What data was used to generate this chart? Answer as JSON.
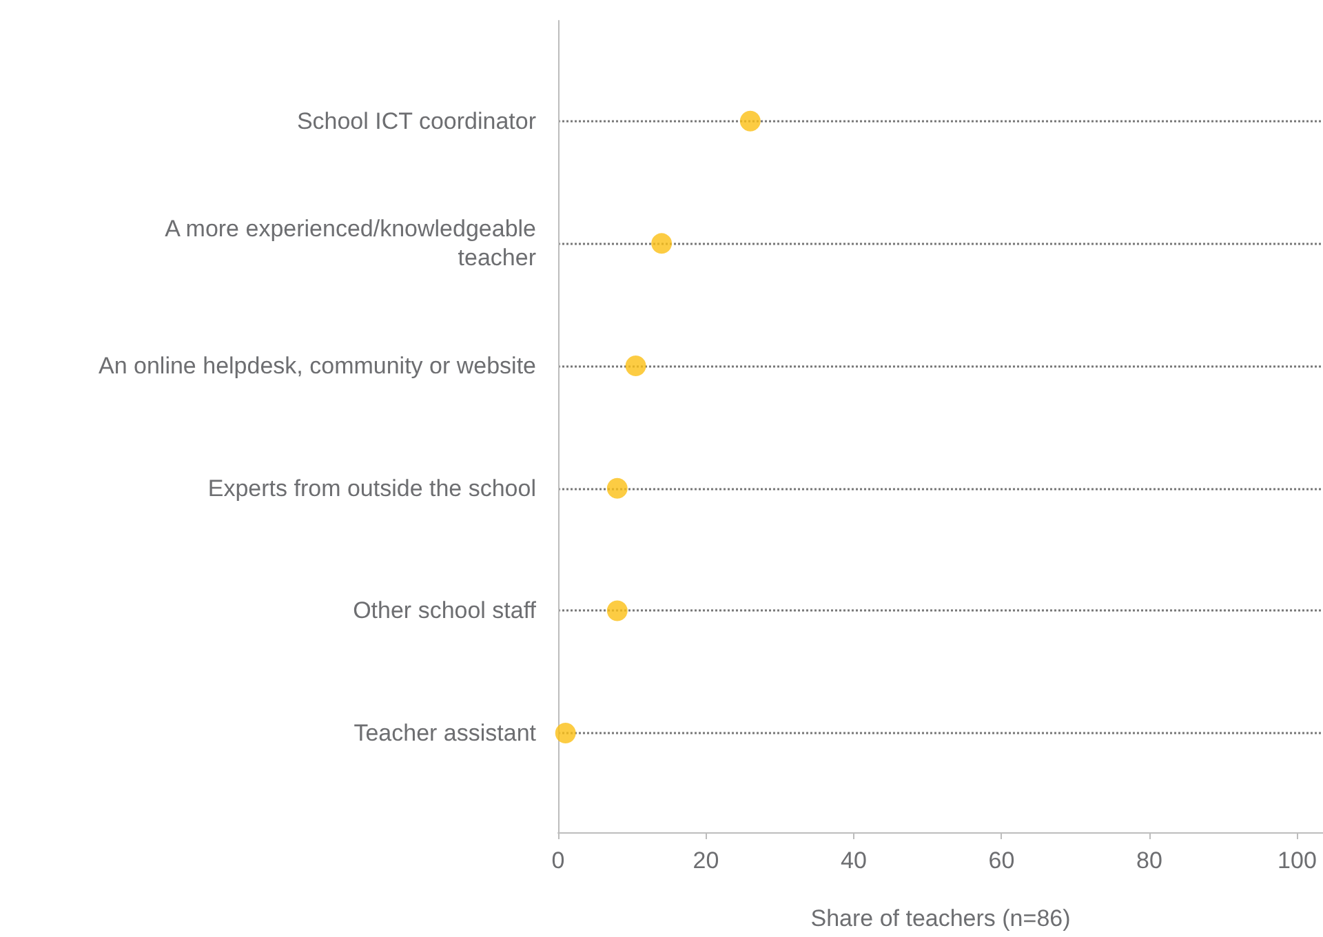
{
  "chart_data": {
    "type": "scatter",
    "orientation": "horizontal",
    "xlabel": "Share of teachers (n=86)",
    "categories": [
      "School ICT coordinator",
      "A more experienced/knowledgeable\nteacher",
      "An online helpdesk, community or website",
      "Experts from outside the school",
      "Other school staff",
      "Teacher assistant"
    ],
    "values": [
      26,
      14,
      10.5,
      8,
      8,
      1
    ],
    "color": "#fbbf14",
    "marker": "circle",
    "xlim": [
      0,
      103.5
    ],
    "xticks": [
      0,
      20,
      40,
      60,
      80,
      100
    ],
    "grid": "y"
  }
}
